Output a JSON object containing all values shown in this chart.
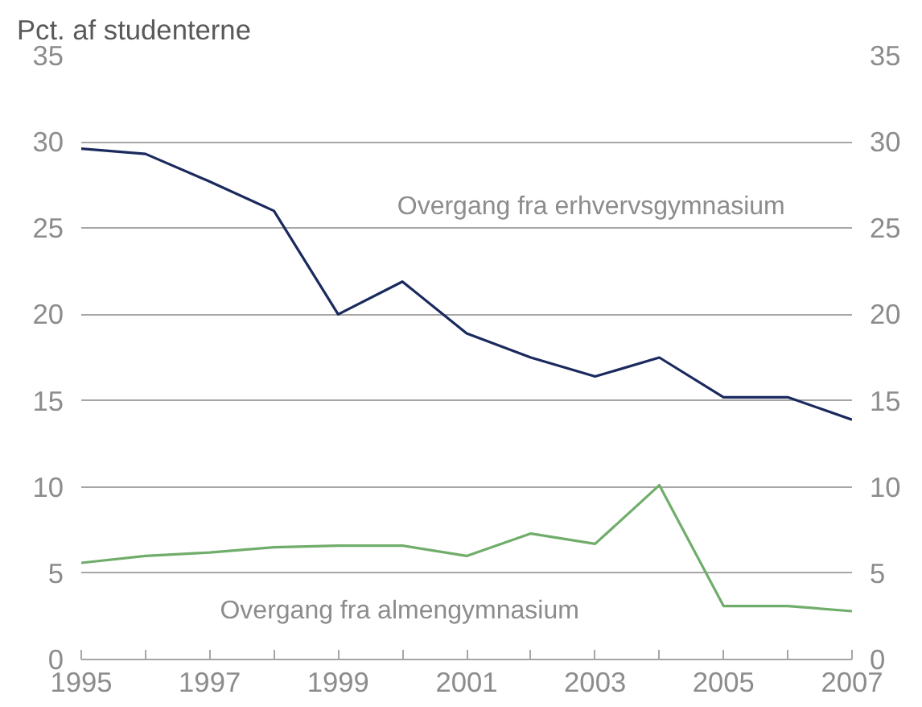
{
  "chart_data": {
    "type": "line",
    "ylabel": "Pct. af studenterne",
    "x": [
      1995,
      1996,
      1997,
      1998,
      1999,
      2000,
      2001,
      2002,
      2003,
      2004,
      2005,
      2006,
      2007
    ],
    "series": [
      {
        "name": "Overgang fra erhvervsgymnasium",
        "color": "#1b2a5e",
        "values": [
          29.6,
          29.3,
          27.7,
          26.0,
          20.0,
          21.9,
          18.9,
          17.5,
          16.4,
          17.5,
          15.2,
          15.2,
          13.9
        ]
      },
      {
        "name": "Overgang fra almengymnasium",
        "color": "#70ad6a",
        "values": [
          5.6,
          6.0,
          6.2,
          6.5,
          6.6,
          6.6,
          6.0,
          7.3,
          6.7,
          10.1,
          3.1,
          3.1,
          2.8
        ]
      }
    ],
    "xlim": [
      1995,
      2007
    ],
    "xticks": [
      1995,
      {
        "value": 1996,
        "label": null
      },
      1997,
      {
        "value": 1998,
        "label": null
      },
      1999,
      {
        "value": 2000,
        "label": null
      },
      2001,
      {
        "value": 2002,
        "label": null
      },
      2003,
      {
        "value": 2004,
        "label": null
      },
      2005,
      {
        "value": 2006,
        "label": null
      },
      2007
    ],
    "ylim": [
      0,
      35
    ],
    "yticks": [
      0,
      5,
      10,
      15,
      20,
      25,
      30,
      35
    ],
    "y2lim": [
      0,
      35
    ],
    "y2ticks": [
      0,
      5,
      10,
      15,
      20,
      25,
      30,
      35
    ],
    "grid": "y",
    "marker": "none",
    "line_style": "solid"
  }
}
